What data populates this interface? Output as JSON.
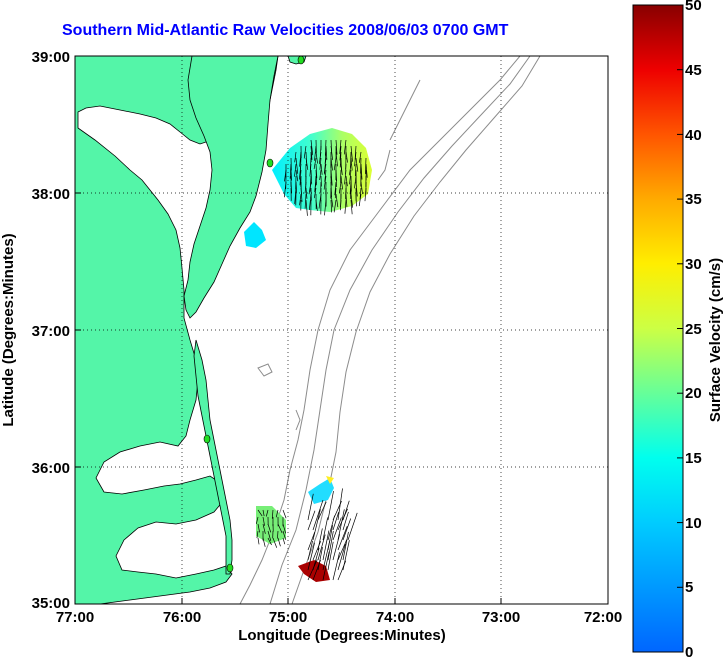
{
  "title": "Southern Mid-Atlantic Raw Velocities 2008/06/03 0700 GMT",
  "axes": {
    "xlabel": "Longitude (Degrees:Minutes)",
    "ylabel": "Latitude (Degrees:Minutes)",
    "x_ticks": [
      "77:00",
      "76:00",
      "75:00",
      "74:00",
      "73:00",
      "72:00"
    ],
    "y_ticks": [
      "39:00",
      "38:00",
      "37:00",
      "36:00",
      "35:00"
    ]
  },
  "colorbar": {
    "label": "Surface Velocity (cm/s)",
    "ticks": [
      "0",
      "5",
      "10",
      "15",
      "20",
      "25",
      "30",
      "35",
      "40",
      "45",
      "50"
    ],
    "min": 0,
    "max": 50
  },
  "colors": {
    "land": "#54f5a8",
    "title": "#0000ff",
    "grid": "#000000",
    "bathymetry": "#8c8c8c",
    "coast": "#000000",
    "station": "#22dd22"
  },
  "chart_data": {
    "type": "map",
    "xlim": [
      -77.0,
      -72.0
    ],
    "ylim": [
      35.0,
      39.0
    ],
    "grid": true,
    "colorbar_range": [
      0,
      50
    ],
    "stations": [
      {
        "lon": -74.85,
        "lat": 39.0
      },
      {
        "lon": -75.15,
        "lat": 38.23
      },
      {
        "lon": -75.5,
        "lat": 36.18
      },
      {
        "lon": -75.55,
        "lat": 35.25
      }
    ],
    "velocity_patches": [
      {
        "name": "north-patch",
        "lon_range": [
          -75.05,
          -74.28
        ],
        "lat_range": [
          37.87,
          38.43
        ],
        "speed_range": [
          8,
          24
        ]
      },
      {
        "name": "small-patch-37-6",
        "lon_range": [
          -75.45,
          -75.2
        ],
        "lat_range": [
          37.55,
          37.8
        ],
        "speed_range": [
          9,
          12
        ]
      },
      {
        "name": "hatteras-patch",
        "lon_range": [
          -75.3,
          -75.03
        ],
        "lat_range": [
          35.45,
          35.72
        ],
        "speed_range": [
          15,
          18
        ]
      },
      {
        "name": "offshore-patch",
        "lon_range": [
          -74.95,
          -74.75
        ],
        "lat_range": [
          35.75,
          35.95
        ],
        "speed_range": [
          8,
          28
        ]
      },
      {
        "name": "south-fast-patch",
        "lon_range": [
          -74.93,
          -74.65
        ],
        "lat_range": [
          35.17,
          35.27
        ],
        "speed_range": [
          48,
          50
        ]
      }
    ]
  }
}
